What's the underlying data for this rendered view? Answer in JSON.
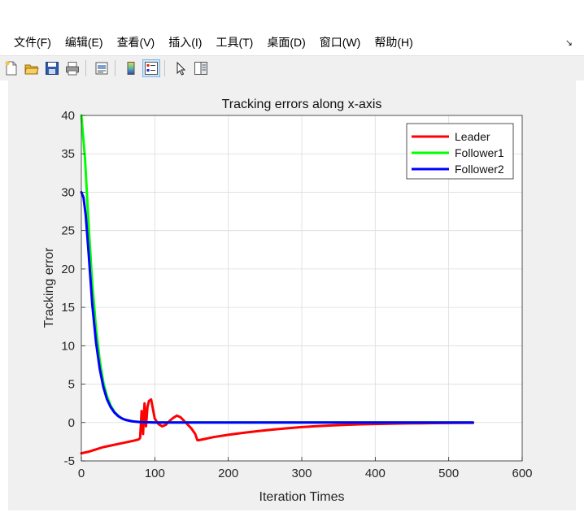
{
  "menubar": {
    "items": [
      "文件(F)",
      "编辑(E)",
      "查看(V)",
      "插入(I)",
      "工具(T)",
      "桌面(D)",
      "窗口(W)",
      "帮助(H)"
    ]
  },
  "toolbar": {
    "buttons": [
      "new-figure-icon",
      "open-folder-icon",
      "save-icon",
      "print-icon",
      "print-preview-icon",
      "colorbar-icon",
      "legend-icon",
      "pointer-icon",
      "property-editor-icon"
    ],
    "active": "legend-icon"
  },
  "chart_data": {
    "type": "line",
    "title": "Tracking errors along x-axis",
    "xlabel": "Iteration Times",
    "ylabel": "Tracking error",
    "xlim": [
      0,
      600
    ],
    "ylim": [
      -5,
      40
    ],
    "xticks": [
      0,
      100,
      200,
      300,
      400,
      500,
      600
    ],
    "yticks": [
      -5,
      0,
      5,
      10,
      15,
      20,
      25,
      30,
      35,
      40
    ],
    "grid": true,
    "legend_position": "top-right",
    "series": [
      {
        "name": "Leader",
        "color": "#ff0000",
        "x": [
          0,
          10,
          20,
          30,
          40,
          50,
          60,
          70,
          78,
          80,
          82,
          84,
          86,
          88,
          90,
          92,
          95,
          98,
          100,
          105,
          110,
          115,
          120,
          125,
          130,
          135,
          140,
          145,
          150,
          155,
          158,
          160,
          170,
          180,
          200,
          220,
          240,
          260,
          280,
          300,
          320,
          340,
          360,
          380,
          400,
          420,
          440,
          460,
          480,
          500,
          520,
          533
        ],
        "y": [
          -4.0,
          -3.8,
          -3.5,
          -3.2,
          -3.0,
          -2.8,
          -2.6,
          -2.4,
          -2.2,
          -2.0,
          1.5,
          -1.5,
          2.5,
          -0.5,
          2.0,
          2.8,
          3.0,
          1.5,
          0.5,
          -0.2,
          -0.5,
          -0.3,
          0.2,
          0.6,
          0.9,
          0.7,
          0.2,
          -0.3,
          -0.8,
          -1.5,
          -2.3,
          -2.3,
          -2.1,
          -1.9,
          -1.6,
          -1.35,
          -1.12,
          -0.92,
          -0.75,
          -0.6,
          -0.48,
          -0.38,
          -0.3,
          -0.24,
          -0.19,
          -0.15,
          -0.12,
          -0.1,
          -0.08,
          -0.07,
          -0.06,
          -0.05
        ]
      },
      {
        "name": "Follower1",
        "color": "#00ff00",
        "x": [
          0,
          5,
          10,
          15,
          20,
          25,
          30,
          35,
          40,
          45,
          50,
          55,
          60,
          70,
          80,
          100,
          150,
          200,
          300,
          400,
          533
        ],
        "y": [
          40,
          34.4,
          25.6,
          18,
          12.2,
          8.1,
          5.2,
          3.4,
          2.2,
          1.4,
          0.9,
          0.55,
          0.35,
          0.15,
          0.05,
          0.0,
          0.0,
          0.0,
          0.0,
          0.0,
          0.0
        ]
      },
      {
        "name": "Follower2",
        "color": "#0000ff",
        "x": [
          0,
          3,
          6,
          10,
          15,
          20,
          25,
          30,
          35,
          40,
          45,
          50,
          55,
          60,
          70,
          80,
          100,
          150,
          200,
          300,
          400,
          533
        ],
        "y": [
          30,
          29.3,
          27.0,
          22.0,
          15.3,
          10.4,
          7.0,
          4.6,
          3.0,
          2.0,
          1.3,
          0.85,
          0.55,
          0.35,
          0.15,
          0.05,
          0.0,
          0.0,
          0.0,
          0.0,
          0.0,
          0.0
        ]
      }
    ]
  }
}
